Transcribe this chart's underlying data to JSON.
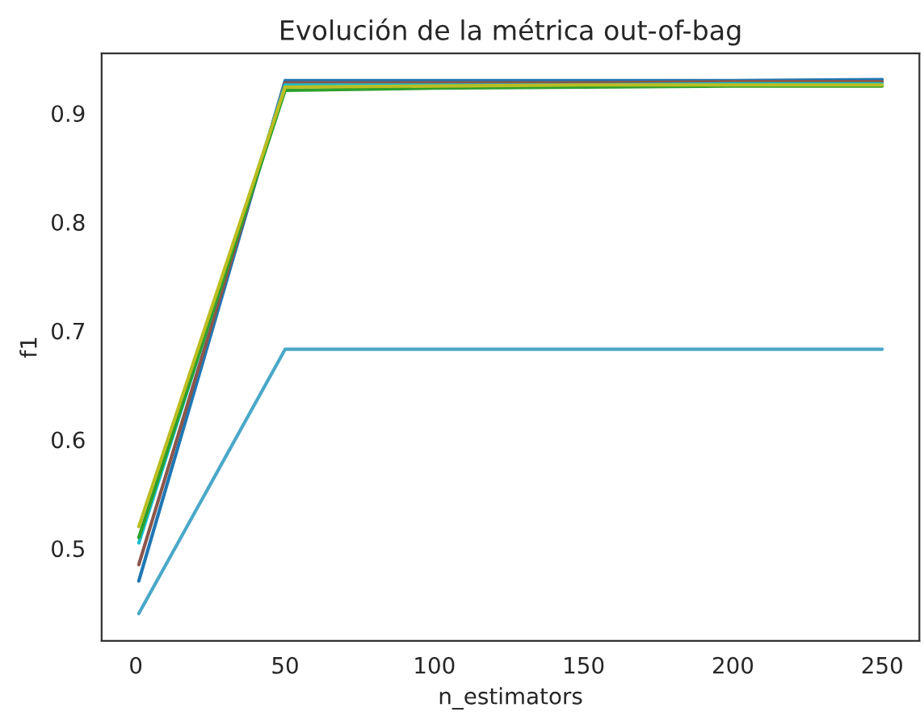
{
  "chart_data": {
    "type": "line",
    "title": "Evolución de la métrica out-of-bag",
    "xlabel": "n_estimators",
    "ylabel": "f1",
    "x": [
      1,
      50,
      100,
      150,
      200,
      250
    ],
    "series": [
      {
        "color": "#1f77b4",
        "values": [
          0.47,
          0.93,
          0.93,
          0.93,
          0.93,
          0.931
        ]
      },
      {
        "color": "#8c564b",
        "values": [
          0.485,
          0.928,
          0.928,
          0.928,
          0.929,
          0.929
        ]
      },
      {
        "color": "#17becf",
        "values": [
          0.505,
          0.926,
          0.926,
          0.926,
          0.927,
          0.927
        ]
      },
      {
        "color": "#2ca02c",
        "values": [
          0.51,
          0.921,
          0.923,
          0.924,
          0.925,
          0.925
        ]
      },
      {
        "color": "#bcbd22",
        "values": [
          0.52,
          0.924,
          0.925,
          0.926,
          0.926,
          0.926
        ]
      },
      {
        "color": "#4aa8c8",
        "values": [
          0.44,
          0.683,
          0.683,
          0.683,
          0.683,
          0.683
        ]
      }
    ],
    "xlim": [
      -11.45,
      262.45
    ],
    "xticks": [
      0,
      50,
      100,
      150,
      200,
      250
    ],
    "ylim": [
      0.415,
      0.955
    ],
    "yticks": [
      0.5,
      0.6,
      0.7,
      0.8,
      0.9
    ],
    "grid": false,
    "marker": "none",
    "line_style": "solid"
  }
}
